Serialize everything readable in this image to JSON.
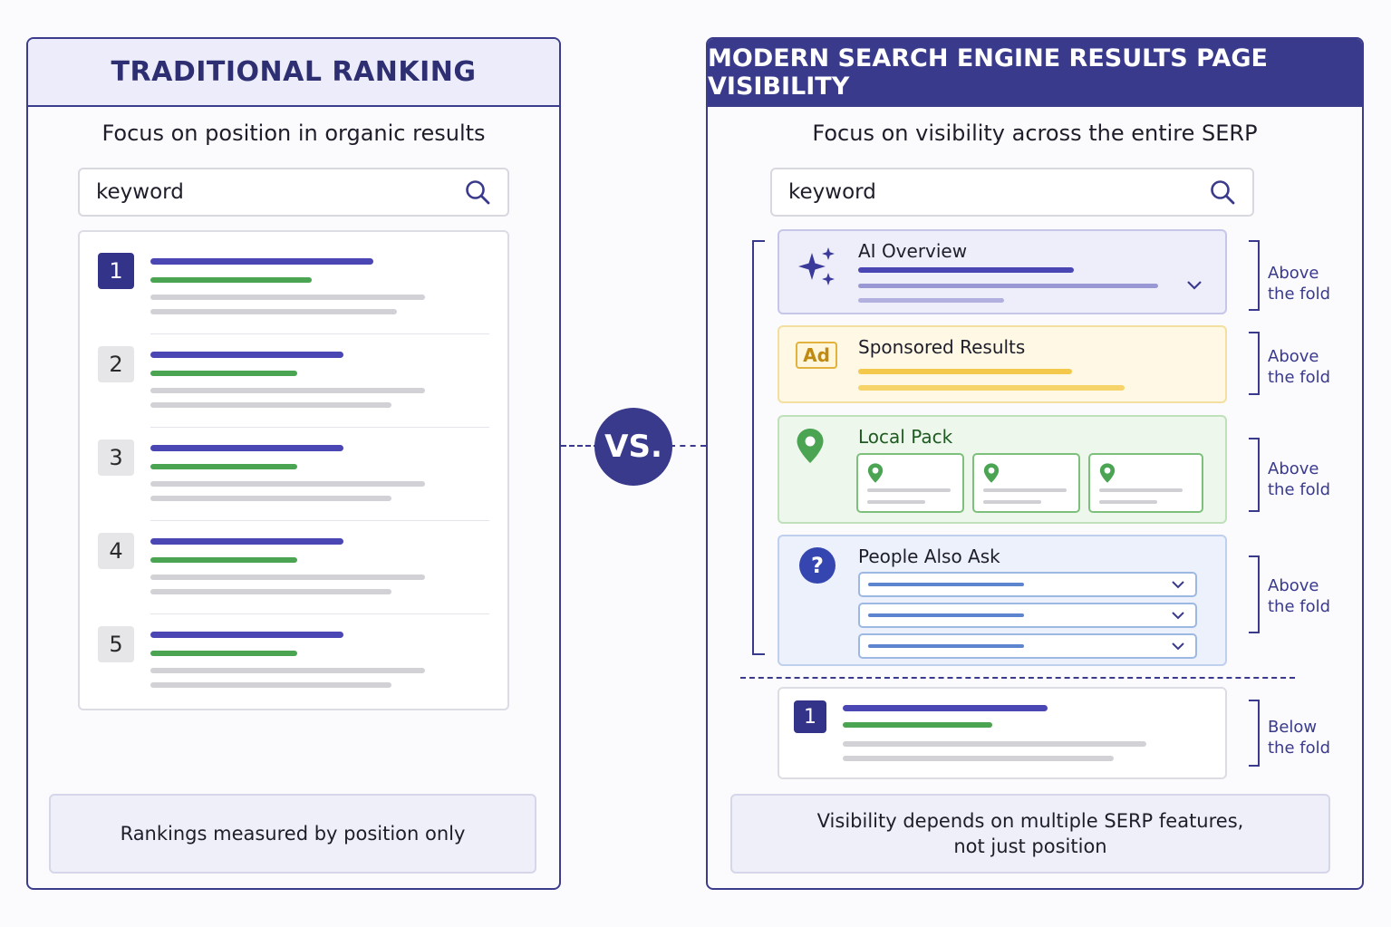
{
  "left": {
    "header": "TRADITIONAL RANKING",
    "subtitle": "Focus on position in organic results",
    "search_value": "keyword",
    "results": [
      "1",
      "2",
      "3",
      "4",
      "5"
    ],
    "footer": "Rankings measured by position only"
  },
  "vs": "VS.",
  "right": {
    "header": "MODERN SEARCH ENGINE RESULTS PAGE VISIBILITY",
    "subtitle": "Focus on visibility across the entire SERP",
    "search_value": "keyword",
    "features": {
      "ai": "AI Overview",
      "ad_badge": "Ad",
      "sponsored": "Sponsored Results",
      "local": "Local Pack",
      "paa_icon": "?",
      "paa": "People Also Ask",
      "organic_num": "1"
    },
    "fold": {
      "above_1": "Above",
      "above_2": "the fold",
      "below_1": "Below",
      "below_2": "the fold"
    },
    "footer_line1": "Visibility depends on multiple SERP features,",
    "footer_line2": "not just position"
  },
  "colors": {
    "primary": "#3a3a8c",
    "green": "#4aa452",
    "yellow": "#f4c84a",
    "blue": "#5d84cf"
  },
  "icons": [
    "search-icon",
    "sparkle-icon",
    "map-pin-icon",
    "question-icon",
    "chevron-down-icon"
  ]
}
